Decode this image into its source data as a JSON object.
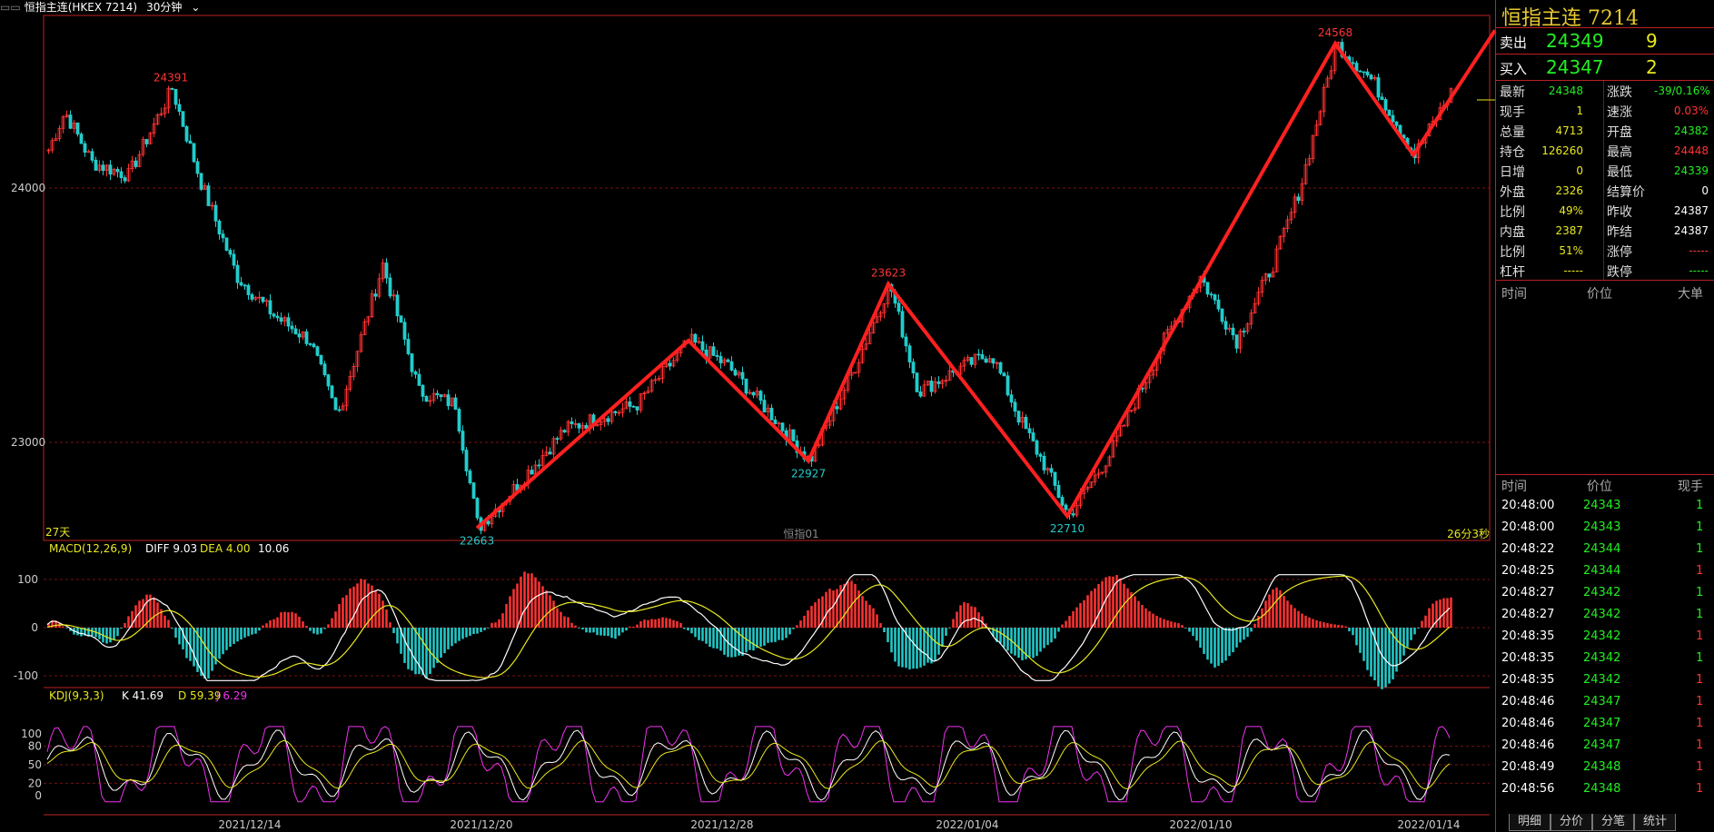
{
  "header": {
    "title": "恒指主连(HKEX 7214)",
    "period": "30分钟"
  },
  "colors": {
    "up": "#ff3333",
    "down": "#22cccc",
    "zigzag": "#ff2020",
    "grid": "#7a1010",
    "diff": "#ffffff",
    "dea": "#e8e820",
    "kdj_j": "#ee33ee"
  },
  "main_chart": {
    "y_labels": [
      "24000",
      "23000"
    ],
    "peak_labels": [
      "24391",
      "22663",
      "22927",
      "23623",
      "22710",
      "24568"
    ],
    "bottom_left": "27天",
    "bottom_center": "恒指01",
    "bottom_right": "26分3秒"
  },
  "macd": {
    "name": "MACD(12,26,9)",
    "diff_label": "DIFF 9.03",
    "dea_label": "DEA 4.00",
    "macd_label": "10.06",
    "y_labels": [
      "100",
      "0",
      "-100"
    ]
  },
  "kdj": {
    "name": "KDJ(9,3,3)",
    "k_label": "K 41.69",
    "d_label": "D 59.39",
    "j_label": "J 6.29",
    "y_labels": [
      "100",
      "80",
      "50",
      "20",
      "0"
    ]
  },
  "x_dates": [
    "2021/12/14",
    "2021/12/20",
    "2021/12/28",
    "2022/01/04",
    "2022/01/10",
    "2022/01/14"
  ],
  "side": {
    "title": "恒指主连  7214",
    "sell": {
      "label": "卖出",
      "price": "24349",
      "vol": "9"
    },
    "buy": {
      "label": "买入",
      "price": "24347",
      "vol": "2"
    },
    "quote_left": [
      {
        "k": "最新",
        "v": "24348",
        "c": "green"
      },
      {
        "k": "现手",
        "v": "1",
        "c": "yellow"
      },
      {
        "k": "总量",
        "v": "4713",
        "c": "yellow"
      },
      {
        "k": "持仓",
        "v": "126260",
        "c": "yellow"
      },
      {
        "k": "日增",
        "v": "0",
        "c": "yellow"
      },
      {
        "k": "外盘",
        "v": "2326",
        "c": "yellow"
      },
      {
        "k": "比例",
        "v": "49%",
        "c": "yellow"
      },
      {
        "k": "内盘",
        "v": "2387",
        "c": "yellow"
      },
      {
        "k": "比例",
        "v": "51%",
        "c": "yellow"
      },
      {
        "k": "杠杆",
        "v": "-----",
        "c": "yellow"
      }
    ],
    "quote_right": [
      {
        "k": "涨跌",
        "v": "-39/0.16%",
        "c": "green"
      },
      {
        "k": "速涨",
        "v": "0.03%",
        "c": "red"
      },
      {
        "k": "开盘",
        "v": "24382",
        "c": "green"
      },
      {
        "k": "最高",
        "v": "24448",
        "c": "red"
      },
      {
        "k": "最低",
        "v": "24339",
        "c": "green"
      },
      {
        "k": "结算价",
        "v": "0",
        "c": "white"
      },
      {
        "k": "昨收",
        "v": "24387",
        "c": "white"
      },
      {
        "k": "昨结",
        "v": "24387",
        "c": "white"
      },
      {
        "k": "涨停",
        "v": "-----",
        "c": "red"
      },
      {
        "k": "跌停",
        "v": "-----",
        "c": "green"
      }
    ],
    "bigorder_headers": [
      "时间",
      "价位",
      "大单"
    ],
    "ticks_headers": [
      "时间",
      "价位",
      "现手"
    ],
    "ticks": [
      {
        "t": "20:48:00",
        "p": "24343",
        "v": "1",
        "c": "green"
      },
      {
        "t": "20:48:00",
        "p": "24343",
        "v": "1",
        "c": "green"
      },
      {
        "t": "20:48:22",
        "p": "24344",
        "v": "1",
        "c": "green"
      },
      {
        "t": "20:48:25",
        "p": "24344",
        "v": "1",
        "c": "red"
      },
      {
        "t": "20:48:27",
        "p": "24342",
        "v": "1",
        "c": "green"
      },
      {
        "t": "20:48:27",
        "p": "24342",
        "v": "1",
        "c": "green"
      },
      {
        "t": "20:48:35",
        "p": "24342",
        "v": "1",
        "c": "red"
      },
      {
        "t": "20:48:35",
        "p": "24342",
        "v": "1",
        "c": "green"
      },
      {
        "t": "20:48:35",
        "p": "24342",
        "v": "1",
        "c": "red"
      },
      {
        "t": "20:48:46",
        "p": "24347",
        "v": "1",
        "c": "red"
      },
      {
        "t": "20:48:46",
        "p": "24347",
        "v": "1",
        "c": "red"
      },
      {
        "t": "20:48:46",
        "p": "24347",
        "v": "1",
        "c": "red"
      },
      {
        "t": "20:48:49",
        "p": "24348",
        "v": "1",
        "c": "red"
      },
      {
        "t": "20:48:56",
        "p": "24348",
        "v": "1",
        "c": "red"
      }
    ],
    "tabs": [
      "明细",
      "分价",
      "分笔",
      "统计"
    ]
  }
}
